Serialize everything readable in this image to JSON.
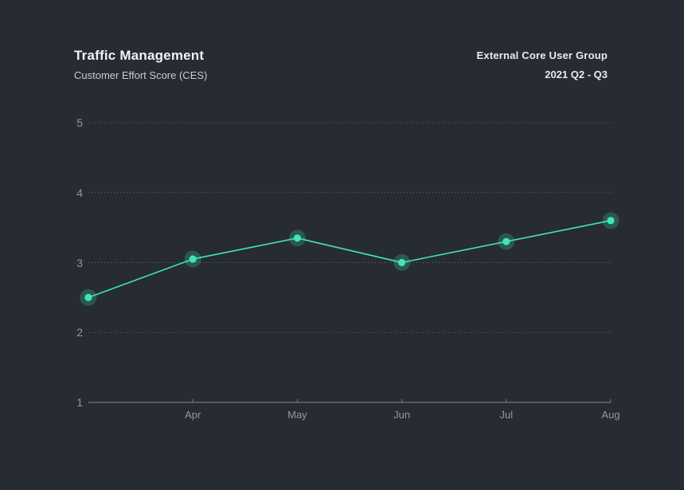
{
  "header": {
    "title": "Traffic Management",
    "subtitle": "Customer Effort Score (CES)",
    "group_label": "External Core User Group",
    "period_label": "2021 Q2 - Q3"
  },
  "colors": {
    "background": "#272b33",
    "line": "#3ee0b5",
    "point_fill": "#41e4ba",
    "point_halo": "rgba(62,224,181,0.24)",
    "grid": "#9aa0a8",
    "axis": "#81868d",
    "tick_label": "#9298a1",
    "title": "#f2f3f5",
    "subtitle": "#c6cad0",
    "header_right": "#e9ebee"
  },
  "chart_data": {
    "type": "line",
    "title": "Traffic Management",
    "subtitle": "Customer Effort Score (CES)",
    "annotation_right": [
      "External Core User Group",
      "2021 Q2 - Q3"
    ],
    "points": [
      {
        "label": "",
        "value": 2.5
      },
      {
        "label": "Apr",
        "value": 3.05
      },
      {
        "label": "May",
        "value": 3.35
      },
      {
        "label": "Jun",
        "value": 3.0
      },
      {
        "label": "Jul",
        "value": 3.3
      },
      {
        "label": "Aug",
        "value": 3.6
      }
    ],
    "series_name": "Customer Effort Score (CES)",
    "ylim": [
      1,
      5
    ],
    "yticks": [
      5,
      4,
      3,
      2,
      1
    ],
    "grid": "dotted horizontal gridlines at 2-5, solid baseline at 1",
    "legend": "none"
  }
}
